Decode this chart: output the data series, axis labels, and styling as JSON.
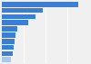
{
  "values": [
    1400,
    750,
    620,
    480,
    290,
    255,
    235,
    215,
    195,
    160
  ],
  "bar_colors": [
    "#3a7fd5",
    "#3a7fd5",
    "#3a7fd5",
    "#3a7fd5",
    "#3a7fd5",
    "#3a7fd5",
    "#3a7fd5",
    "#3a7fd5",
    "#3a7fd5",
    "#a8c8f0"
  ],
  "background_color": "#f0f0f0",
  "xlim": [
    0,
    1600
  ],
  "grid_lines": [
    400,
    800,
    1200,
    1600
  ]
}
